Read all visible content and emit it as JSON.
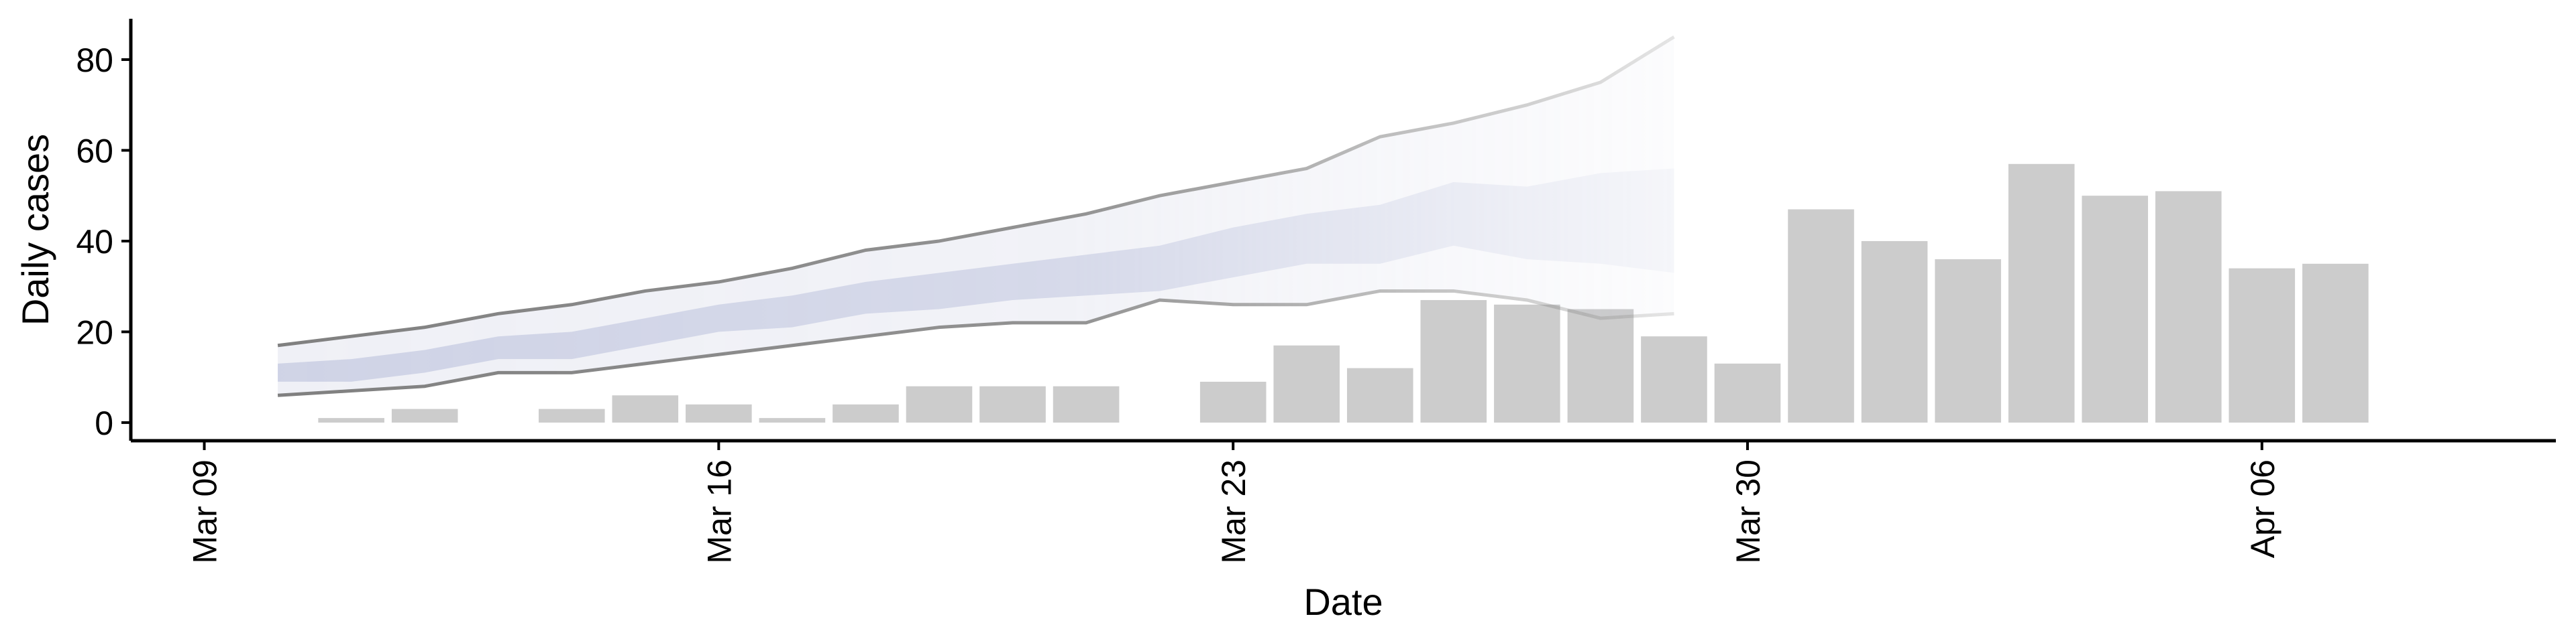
{
  "chart_data": {
    "type": "bar",
    "xlabel": "Date",
    "ylabel": "Daily cases",
    "ylim": [
      -4,
      89
    ],
    "xlim": [
      "2020-03-08",
      "2020-04-10"
    ],
    "y_ticks": [
      0,
      20,
      40,
      60,
      80
    ],
    "x_ticks": [
      {
        "date": "2020-03-09",
        "label": "Mar 09"
      },
      {
        "date": "2020-03-16",
        "label": "Mar 16"
      },
      {
        "date": "2020-03-23",
        "label": "Mar 23"
      },
      {
        "date": "2020-03-30",
        "label": "Mar 30"
      },
      {
        "date": "2020-04-06",
        "label": "Apr 06"
      }
    ],
    "bars": {
      "color": "#cccccc",
      "points": [
        {
          "date": "2020-03-11",
          "value": 1
        },
        {
          "date": "2020-03-12",
          "value": 3
        },
        {
          "date": "2020-03-14",
          "value": 3
        },
        {
          "date": "2020-03-15",
          "value": 6
        },
        {
          "date": "2020-03-16",
          "value": 4
        },
        {
          "date": "2020-03-17",
          "value": 1
        },
        {
          "date": "2020-03-18",
          "value": 4
        },
        {
          "date": "2020-03-19",
          "value": 8
        },
        {
          "date": "2020-03-20",
          "value": 8
        },
        {
          "date": "2020-03-21",
          "value": 8
        },
        {
          "date": "2020-03-23",
          "value": 9
        },
        {
          "date": "2020-03-24",
          "value": 17
        },
        {
          "date": "2020-03-25",
          "value": 12
        },
        {
          "date": "2020-03-26",
          "value": 27
        },
        {
          "date": "2020-03-27",
          "value": 26
        },
        {
          "date": "2020-03-28",
          "value": 25
        },
        {
          "date": "2020-03-29",
          "value": 19
        },
        {
          "date": "2020-03-30",
          "value": 13
        },
        {
          "date": "2020-03-31",
          "value": 47
        },
        {
          "date": "2020-04-01",
          "value": 40
        },
        {
          "date": "2020-04-02",
          "value": 36
        },
        {
          "date": "2020-04-03",
          "value": 57
        },
        {
          "date": "2020-04-04",
          "value": 50
        },
        {
          "date": "2020-04-05",
          "value": 51
        },
        {
          "date": "2020-04-06",
          "value": 34
        },
        {
          "date": "2020-04-07",
          "value": 35
        }
      ]
    },
    "projection": {
      "dates": [
        "2020-03-10",
        "2020-03-11",
        "2020-03-12",
        "2020-03-13",
        "2020-03-14",
        "2020-03-15",
        "2020-03-16",
        "2020-03-17",
        "2020-03-18",
        "2020-03-19",
        "2020-03-20",
        "2020-03-21",
        "2020-03-22",
        "2020-03-23",
        "2020-03-24",
        "2020-03-25",
        "2020-03-26",
        "2020-03-27",
        "2020-03-28",
        "2020-03-29"
      ],
      "outer_upper": [
        17,
        19,
        21,
        24,
        26,
        29,
        31,
        34,
        38,
        40,
        43,
        46,
        50,
        53,
        56,
        63,
        66,
        70,
        75,
        85
      ],
      "outer_lower": [
        6,
        7,
        8,
        11,
        11,
        13,
        15,
        17,
        19,
        21,
        22,
        22,
        27,
        26,
        26,
        29,
        29,
        27,
        23,
        24
      ],
      "inner_upper": [
        13,
        14,
        16,
        19,
        20,
        23,
        26,
        28,
        31,
        33,
        35,
        37,
        39,
        43,
        46,
        48,
        53,
        52,
        55,
        56
      ],
      "inner_lower": [
        9,
        9,
        11,
        14,
        14,
        17,
        20,
        21,
        24,
        25,
        27,
        28,
        29,
        32,
        35,
        35,
        39,
        36,
        35,
        33
      ],
      "band_color": "#b4bcd8",
      "line_color": "#808080"
    }
  }
}
